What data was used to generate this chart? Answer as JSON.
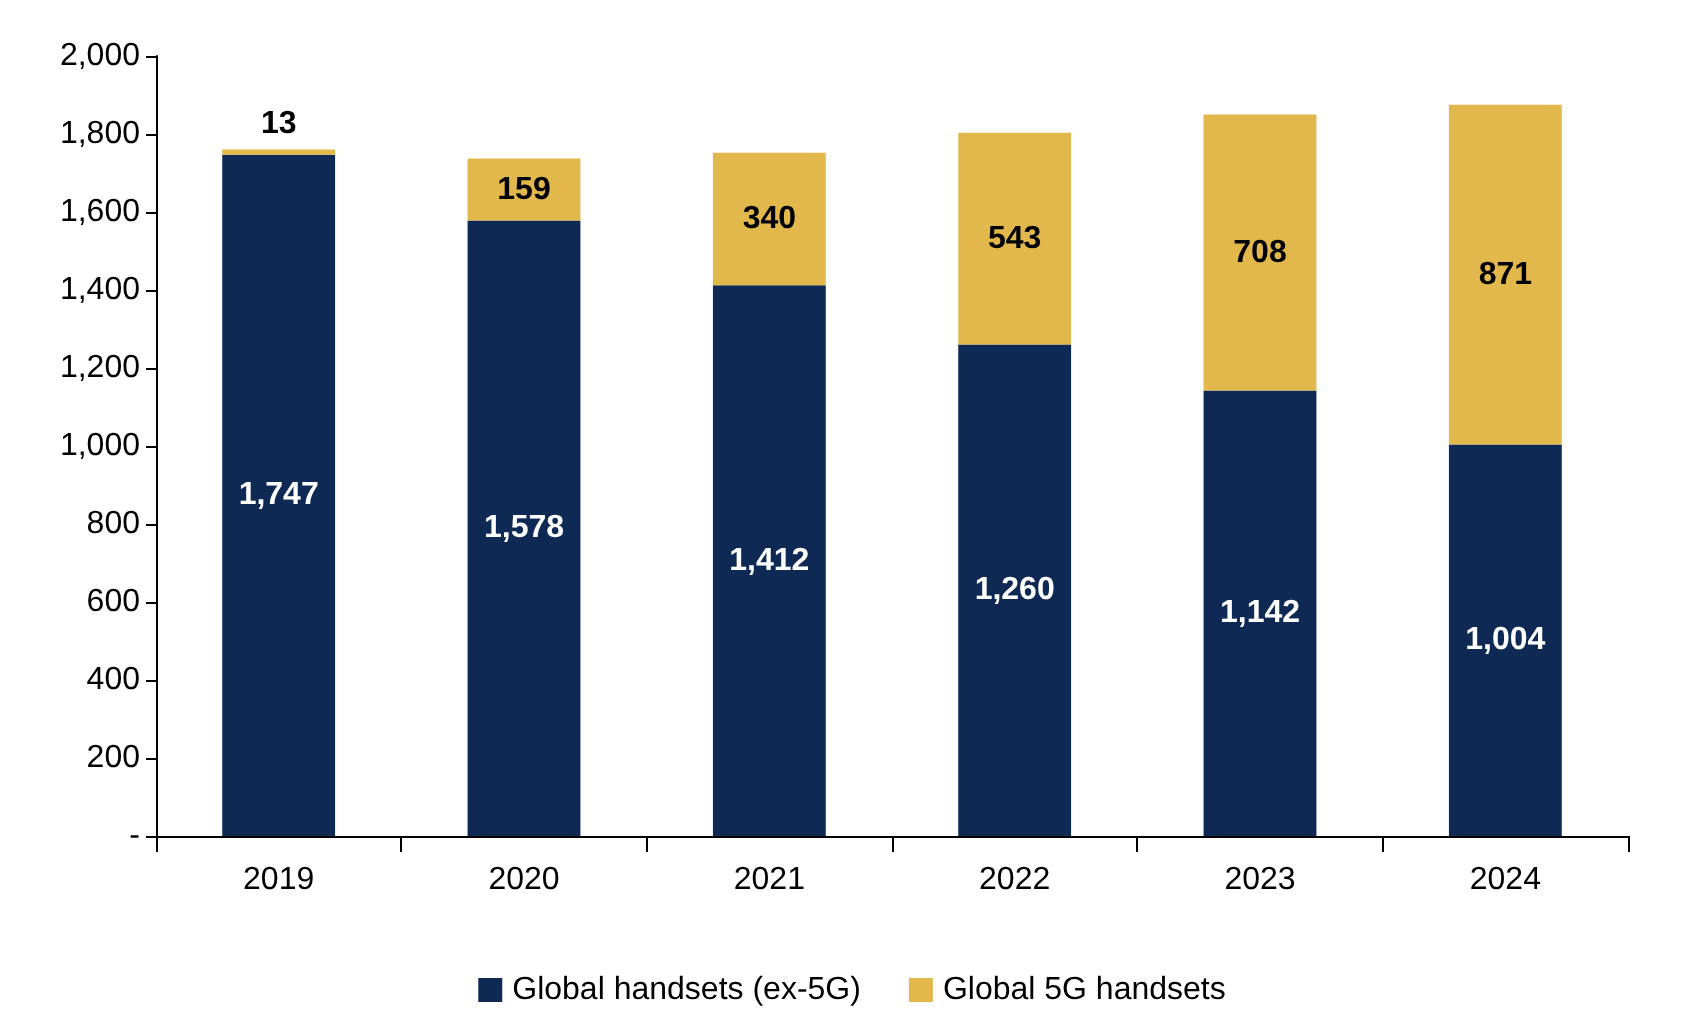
{
  "chart_data": {
    "type": "bar",
    "stacked": true,
    "categories": [
      "2019",
      "2020",
      "2021",
      "2022",
      "2023",
      "2024"
    ],
    "series": [
      {
        "name": "Global handsets (ex-5G)",
        "color": "#0e2a54",
        "values": [
          1747,
          1578,
          1412,
          1260,
          1142,
          1004
        ],
        "value_labels": [
          "1,747",
          "1,578",
          "1,412",
          "1,260",
          "1,142",
          "1,004"
        ]
      },
      {
        "name": "Global 5G handsets",
        "color": "#e2b84c",
        "values": [
          13,
          159,
          340,
          543,
          708,
          871
        ],
        "value_labels": [
          "13",
          "159",
          "340",
          "543",
          "708",
          "871"
        ]
      }
    ],
    "ylim": [
      0,
      2000
    ],
    "yticks": [
      {
        "value": 0,
        "label": "-"
      },
      {
        "value": 200,
        "label": "200"
      },
      {
        "value": 400,
        "label": "400"
      },
      {
        "value": 600,
        "label": "600"
      },
      {
        "value": 800,
        "label": "800"
      },
      {
        "value": 1000,
        "label": "1,000"
      },
      {
        "value": 1200,
        "label": "1,200"
      },
      {
        "value": 1400,
        "label": "1,400"
      },
      {
        "value": 1600,
        "label": "1,600"
      },
      {
        "value": 1800,
        "label": "1,800"
      },
      {
        "value": 2000,
        "label": "2,000"
      }
    ],
    "grid": false,
    "legend": "bottom"
  }
}
